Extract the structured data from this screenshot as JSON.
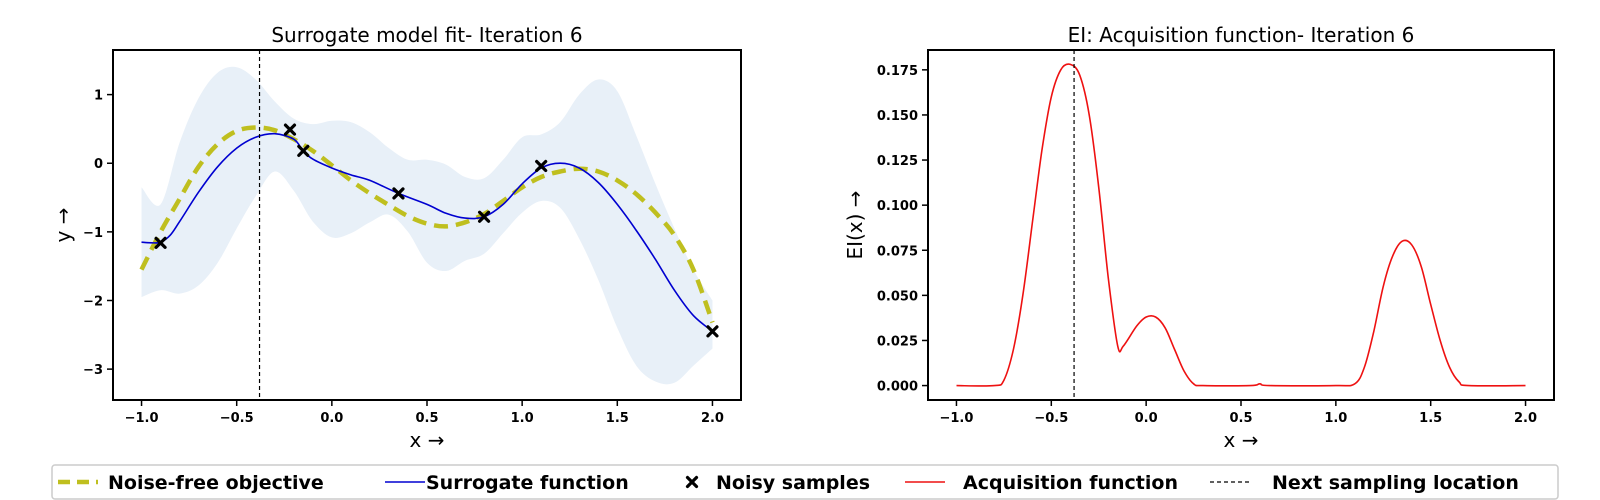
{
  "chart_data": [
    {
      "type": "line",
      "title": "Surrogate model fit- Iteration 6",
      "xlabel": "x →",
      "ylabel": "y →",
      "xlim": [
        -1.15,
        2.15
      ],
      "ylim": [
        -3.45,
        1.65
      ],
      "xticks": [
        -1.0,
        -0.5,
        0.0,
        0.5,
        1.0,
        1.5,
        2.0
      ],
      "xtick_labels": [
        "−1.0",
        "−0.5",
        "0.0",
        "0.5",
        "1.0",
        "1.5",
        "2.0"
      ],
      "yticks": [
        1,
        0,
        -1,
        -2,
        -3
      ],
      "ytick_labels": [
        "1",
        "0",
        "−1",
        "−2",
        "−3"
      ],
      "vline_x": -0.38,
      "series": [
        {
          "name": "Noise-free objective",
          "style": "dashed",
          "color": "#bfbf1f",
          "points": [
            [
              -1.0,
              -1.55
            ],
            [
              -0.9,
              -1.0
            ],
            [
              -0.8,
              -0.52
            ],
            [
              -0.7,
              -0.05
            ],
            [
              -0.6,
              0.28
            ],
            [
              -0.5,
              0.47
            ],
            [
              -0.4,
              0.52
            ],
            [
              -0.3,
              0.48
            ],
            [
              -0.2,
              0.35
            ],
            [
              -0.1,
              0.18
            ],
            [
              0.0,
              -0.03
            ],
            [
              0.1,
              -0.25
            ],
            [
              0.2,
              -0.44
            ],
            [
              0.3,
              -0.61
            ],
            [
              0.4,
              -0.77
            ],
            [
              0.5,
              -0.88
            ],
            [
              0.6,
              -0.92
            ],
            [
              0.7,
              -0.86
            ],
            [
              0.8,
              -0.74
            ],
            [
              0.9,
              -0.55
            ],
            [
              1.0,
              -0.35
            ],
            [
              1.1,
              -0.2
            ],
            [
              1.2,
              -0.12
            ],
            [
              1.3,
              -0.08
            ],
            [
              1.4,
              -0.12
            ],
            [
              1.5,
              -0.25
            ],
            [
              1.6,
              -0.45
            ],
            [
              1.7,
              -0.72
            ],
            [
              1.8,
              -1.05
            ],
            [
              1.9,
              -1.55
            ],
            [
              2.0,
              -2.32
            ]
          ]
        },
        {
          "name": "Surrogate function",
          "style": "solid",
          "color": "#0000d0",
          "points": [
            [
              -1.0,
              -1.15
            ],
            [
              -0.95,
              -1.16
            ],
            [
              -0.9,
              -1.15
            ],
            [
              -0.85,
              -1.05
            ],
            [
              -0.8,
              -0.85
            ],
            [
              -0.7,
              -0.42
            ],
            [
              -0.6,
              -0.05
            ],
            [
              -0.5,
              0.22
            ],
            [
              -0.4,
              0.38
            ],
            [
              -0.3,
              0.43
            ],
            [
              -0.2,
              0.35
            ],
            [
              -0.15,
              0.18
            ],
            [
              -0.1,
              0.06
            ],
            [
              0.0,
              -0.07
            ],
            [
              0.1,
              -0.17
            ],
            [
              0.2,
              -0.25
            ],
            [
              0.35,
              -0.44
            ],
            [
              0.5,
              -0.6
            ],
            [
              0.6,
              -0.73
            ],
            [
              0.7,
              -0.8
            ],
            [
              0.8,
              -0.78
            ],
            [
              0.9,
              -0.6
            ],
            [
              1.0,
              -0.3
            ],
            [
              1.1,
              -0.07
            ],
            [
              1.2,
              0.0
            ],
            [
              1.3,
              -0.07
            ],
            [
              1.4,
              -0.28
            ],
            [
              1.5,
              -0.6
            ],
            [
              1.6,
              -0.98
            ],
            [
              1.7,
              -1.4
            ],
            [
              1.8,
              -1.85
            ],
            [
              1.9,
              -2.22
            ],
            [
              2.0,
              -2.45
            ]
          ]
        }
      ],
      "band": {
        "color": "#e8f0f8",
        "upper": [
          [
            -1.0,
            -0.35
          ],
          [
            -0.9,
            -0.6
          ],
          [
            -0.8,
            0.3
          ],
          [
            -0.7,
            0.95
          ],
          [
            -0.6,
            1.32
          ],
          [
            -0.5,
            1.4
          ],
          [
            -0.4,
            1.22
          ],
          [
            -0.3,
            0.9
          ],
          [
            -0.2,
            0.65
          ],
          [
            -0.1,
            0.57
          ],
          [
            0.0,
            0.62
          ],
          [
            0.1,
            0.6
          ],
          [
            0.2,
            0.45
          ],
          [
            0.3,
            0.22
          ],
          [
            0.4,
            0.05
          ],
          [
            0.5,
            0.05
          ],
          [
            0.6,
            -0.02
          ],
          [
            0.7,
            -0.2
          ],
          [
            0.8,
            -0.22
          ],
          [
            0.9,
            0.05
          ],
          [
            1.0,
            0.38
          ],
          [
            1.1,
            0.42
          ],
          [
            1.2,
            0.6
          ],
          [
            1.3,
            1.0
          ],
          [
            1.4,
            1.22
          ],
          [
            1.5,
            1.05
          ],
          [
            1.6,
            0.4
          ],
          [
            1.7,
            -0.3
          ],
          [
            1.8,
            -0.95
          ],
          [
            1.9,
            -1.55
          ],
          [
            2.0,
            -2.0
          ]
        ],
        "lower": [
          [
            -1.0,
            -1.95
          ],
          [
            -0.9,
            -1.85
          ],
          [
            -0.8,
            -1.9
          ],
          [
            -0.7,
            -1.78
          ],
          [
            -0.6,
            -1.45
          ],
          [
            -0.5,
            -0.95
          ],
          [
            -0.4,
            -0.48
          ],
          [
            -0.3,
            -0.12
          ],
          [
            -0.2,
            -0.4
          ],
          [
            -0.1,
            -0.85
          ],
          [
            0.0,
            -1.08
          ],
          [
            0.1,
            -1.02
          ],
          [
            0.2,
            -0.86
          ],
          [
            0.3,
            -0.75
          ],
          [
            0.4,
            -1.0
          ],
          [
            0.5,
            -1.45
          ],
          [
            0.6,
            -1.57
          ],
          [
            0.7,
            -1.42
          ],
          [
            0.8,
            -1.32
          ],
          [
            0.9,
            -1.02
          ],
          [
            1.0,
            -0.72
          ],
          [
            1.1,
            -0.55
          ],
          [
            1.2,
            -0.65
          ],
          [
            1.3,
            -1.1
          ],
          [
            1.4,
            -1.7
          ],
          [
            1.5,
            -2.4
          ],
          [
            1.6,
            -2.95
          ],
          [
            1.7,
            -3.18
          ],
          [
            1.8,
            -3.2
          ],
          [
            1.9,
            -2.95
          ],
          [
            2.0,
            -2.7
          ]
        ]
      },
      "samples": {
        "name": "Noisy samples",
        "points": [
          [
            -0.9,
            -1.16
          ],
          [
            -0.22,
            0.49
          ],
          [
            -0.15,
            0.18
          ],
          [
            0.35,
            -0.44
          ],
          [
            0.8,
            -0.78
          ],
          [
            1.1,
            -0.04
          ],
          [
            2.0,
            -2.45
          ]
        ]
      }
    },
    {
      "type": "line",
      "title": "EI: Acquisition function- Iteration 6",
      "xlabel": "x →",
      "ylabel": "EI(x) →",
      "xlim": [
        -1.15,
        2.15
      ],
      "ylim": [
        -0.008,
        0.186
      ],
      "xticks": [
        -1.0,
        -0.5,
        0.0,
        0.5,
        1.0,
        1.5,
        2.0
      ],
      "xtick_labels": [
        "−1.0",
        "−0.5",
        "0.0",
        "0.5",
        "1.0",
        "1.5",
        "2.0"
      ],
      "yticks": [
        0.0,
        0.025,
        0.05,
        0.075,
        0.1,
        0.125,
        0.15,
        0.175
      ],
      "ytick_labels": [
        "0.000",
        "0.025",
        "0.050",
        "0.075",
        "0.100",
        "0.125",
        "0.150",
        "0.175"
      ],
      "vline_x": -0.38,
      "series": [
        {
          "name": "Acquisition function",
          "style": "solid",
          "color": "#ee1111",
          "points": [
            [
              -1.0,
              0.0
            ],
            [
              -0.8,
              0.0
            ],
            [
              -0.75,
              0.003
            ],
            [
              -0.7,
              0.02
            ],
            [
              -0.65,
              0.05
            ],
            [
              -0.6,
              0.09
            ],
            [
              -0.55,
              0.13
            ],
            [
              -0.5,
              0.16
            ],
            [
              -0.45,
              0.175
            ],
            [
              -0.4,
              0.178
            ],
            [
              -0.35,
              0.172
            ],
            [
              -0.3,
              0.15
            ],
            [
              -0.25,
              0.11
            ],
            [
              -0.2,
              0.06
            ],
            [
              -0.15,
              0.022
            ],
            [
              -0.12,
              0.022
            ],
            [
              -0.05,
              0.033
            ],
            [
              0.0,
              0.038
            ],
            [
              0.05,
              0.038
            ],
            [
              0.1,
              0.032
            ],
            [
              0.15,
              0.02
            ],
            [
              0.2,
              0.008
            ],
            [
              0.25,
              0.001
            ],
            [
              0.3,
              0.0
            ],
            [
              0.55,
              0.0
            ],
            [
              0.6,
              0.001
            ],
            [
              0.65,
              0.0
            ],
            [
              1.0,
              0.0
            ],
            [
              1.1,
              0.001
            ],
            [
              1.15,
              0.01
            ],
            [
              1.2,
              0.03
            ],
            [
              1.25,
              0.055
            ],
            [
              1.3,
              0.072
            ],
            [
              1.35,
              0.08
            ],
            [
              1.4,
              0.078
            ],
            [
              1.45,
              0.066
            ],
            [
              1.5,
              0.045
            ],
            [
              1.55,
              0.025
            ],
            [
              1.6,
              0.01
            ],
            [
              1.65,
              0.002
            ],
            [
              1.7,
              0.0
            ],
            [
              2.0,
              0.0
            ]
          ]
        }
      ]
    }
  ],
  "legend": {
    "items": [
      {
        "label": "Noise-free objective",
        "kind": "dashed-line",
        "color": "#bfbf1f"
      },
      {
        "label": "Surrogate function",
        "kind": "line",
        "color": "#0000d0"
      },
      {
        "label": "Noisy samples",
        "kind": "marker",
        "color": "#000000"
      },
      {
        "label": "Acquisition function",
        "kind": "line",
        "color": "#ee1111"
      },
      {
        "label": "Next sampling location",
        "kind": "dotted-line",
        "color": "#000000"
      }
    ]
  }
}
